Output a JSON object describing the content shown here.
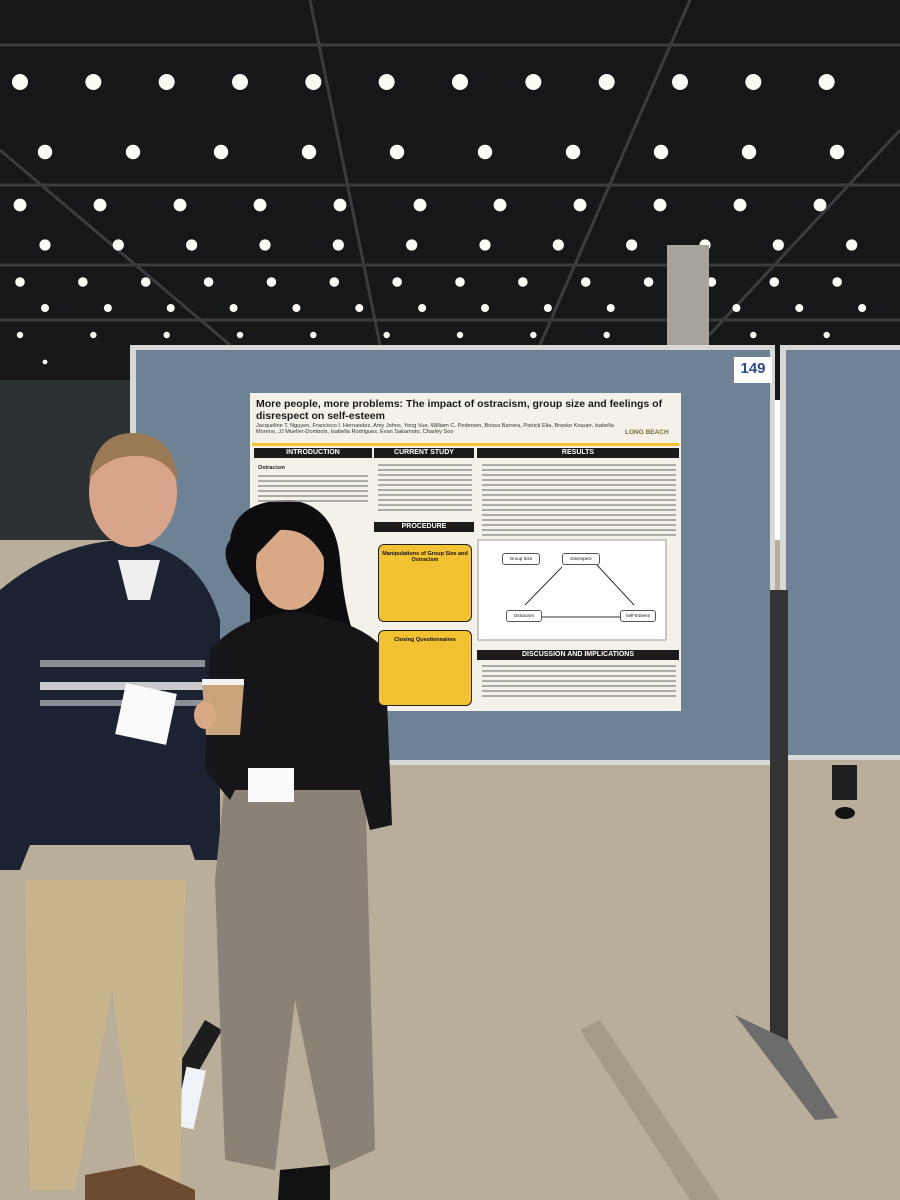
{
  "booth_number": "149",
  "poster": {
    "title": "More people, more problems: The impact of ostracism, group size and feelings of disrespect on self-esteem",
    "authors": "Jacqueline T. Nguyen, Francisco I. Hernandez, Amy Johns, Yeng Vue, William C. Pedersen, Brissa Barrera, Patrick Elia, Brooke Knauer, Isabella Moreno, JJ Mueller-Dombois, Isabella Rodrigues, Evan Sakamoto, Charley Soo",
    "logo": "LONG BEACH",
    "sections": [
      "INTRODUCTION",
      "CURRENT STUDY",
      "RESULTS",
      "PROCEDURE",
      "DISCUSSION AND IMPLICATIONS"
    ],
    "intro_heading": "Ostracism",
    "boxes": [
      "Manipulations of Group Size and Ostracism",
      "Closing Questionnaires"
    ],
    "diagram_nodes": [
      "Group Size",
      "Disrespect",
      "Ostracism",
      "Self-Esteem"
    ]
  }
}
